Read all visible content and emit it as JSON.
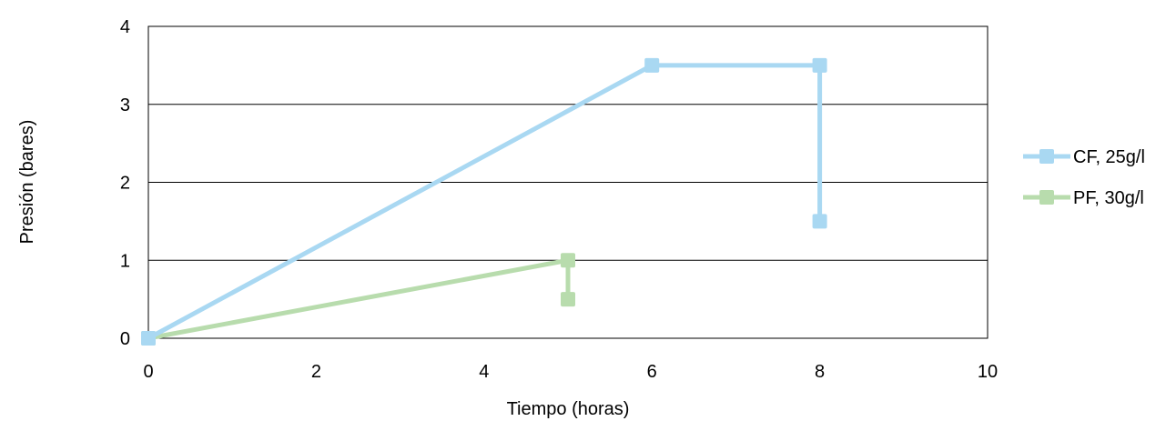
{
  "chart_data": {
    "type": "line",
    "title": "",
    "xlabel": "Tiempo (horas)",
    "ylabel": "Presión (bares)",
    "xlim": [
      0,
      10
    ],
    "ylim": [
      0,
      4
    ],
    "xticks": [
      "0",
      "2",
      "4",
      "6",
      "8",
      "10"
    ],
    "yticks": [
      "0",
      "1",
      "2",
      "3",
      "4"
    ],
    "grid": "horizontal",
    "legend_position": "right",
    "series": [
      {
        "name": "CF, 25g/l",
        "color": "#a9d8f2",
        "x": [
          0,
          6,
          8,
          8
        ],
        "y": [
          0,
          3.5,
          3.5,
          1.5
        ]
      },
      {
        "name": "PF, 30g/l",
        "color": "#b8dcad",
        "x": [
          0,
          5,
          5
        ],
        "y": [
          0,
          1,
          0.5
        ]
      }
    ]
  }
}
